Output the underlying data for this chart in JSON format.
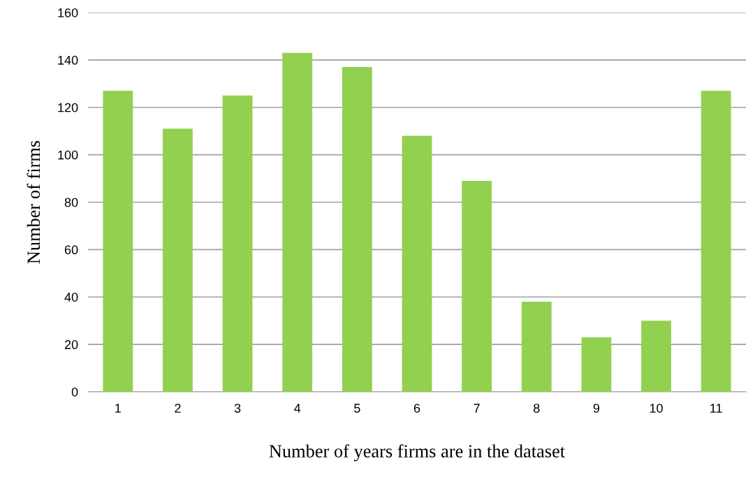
{
  "chart_data": {
    "type": "bar",
    "xlabel": "Number of years firms are in the dataset",
    "ylabel": "Number of firms",
    "categories": [
      "1",
      "2",
      "3",
      "4",
      "5",
      "6",
      "7",
      "8",
      "9",
      "10",
      "11"
    ],
    "values": [
      127,
      111,
      125,
      143,
      137,
      108,
      89,
      38,
      23,
      30,
      127
    ],
    "color": "#92d050",
    "ylim": [
      0,
      160
    ],
    "yticks": [
      0,
      20,
      40,
      60,
      80,
      100,
      120,
      140,
      160
    ],
    "grid": "y",
    "legend": false
  }
}
